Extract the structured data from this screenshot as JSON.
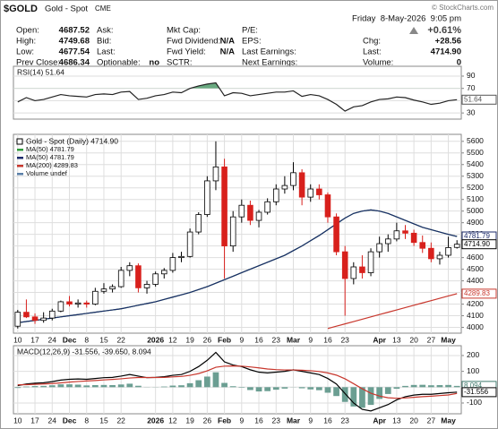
{
  "quote": {
    "symbol": "$GOLD",
    "name": "Gold - Spot",
    "exchange": "CME",
    "copyright": "© StockCharts.com",
    "date": "Friday  8-May-2026  9:05 pm",
    "columns": [
      [
        {
          "label": "Open:",
          "value": "4687.52"
        },
        {
          "label": "High:",
          "value": "4749.68"
        },
        {
          "label": "Low:",
          "value": "4677.54"
        },
        {
          "label": "Prev Close:",
          "value": "4686.34"
        }
      ],
      [
        {
          "label": "Ask:"
        },
        {
          "label": "Bid:"
        },
        {
          "label": "Last:"
        },
        {
          "label": "Optionable:",
          "value": "no"
        }
      ],
      [
        {
          "label": "Mkt Cap:"
        },
        {
          "label": "Fwd Dividend:",
          "value": "N/A"
        },
        {
          "label": "Fwd Yield:",
          "value": "N/A"
        },
        {
          "label": "SCTR:"
        }
      ],
      [
        {
          "label": "P/E:"
        },
        {
          "label": "EPS:"
        },
        {
          "label": "Last Earnings:"
        },
        {
          "label": "Next Earnings:"
        }
      ],
      [
        {
          "value": "+0.61%"
        },
        {
          "label": "Chg:",
          "value": "+28.56"
        },
        {
          "label": "Last:",
          "value": "4714.90"
        },
        {
          "label": "Volume:",
          "value": "0"
        }
      ]
    ]
  },
  "chart_data": [
    {
      "type": "line",
      "title": "RSI(14) 51.64",
      "ylim": [
        20,
        106
      ],
      "yticks": [
        90,
        70,
        50,
        30
      ],
      "grid": true,
      "fill_above": 70,
      "fill_color": "#4f9a6a",
      "series": [
        {
          "type": "line",
          "color": "#222222",
          "values": [
            48,
            55,
            50,
            52,
            56,
            60,
            58,
            57,
            56,
            60,
            61,
            60,
            64,
            65,
            52,
            54,
            58,
            60,
            64,
            63,
            70,
            74,
            77,
            79,
            58,
            63,
            62,
            58,
            60,
            62,
            64,
            64,
            66,
            57,
            60,
            58,
            52,
            44,
            33,
            40,
            42,
            48,
            52,
            53,
            56,
            55,
            51,
            48,
            44,
            46,
            50,
            51.64
          ]
        }
      ],
      "tags": [
        {
          "value": 51.64,
          "label": "51.64",
          "color": "#555555"
        }
      ]
    },
    {
      "type": "candlestick",
      "ylim": [
        3950,
        5660
      ],
      "grid": true,
      "yticks": [
        5600,
        5500,
        5400,
        5300,
        5200,
        5100,
        5000,
        4900,
        4800,
        4700,
        4600,
        4500,
        4400,
        4300,
        4200,
        4100,
        4000
      ],
      "categories": [
        "10",
        null,
        "17",
        null,
        "24",
        null,
        "Dec",
        null,
        "8",
        null,
        "15",
        null,
        "22",
        null,
        null,
        null,
        "2026",
        null,
        "12",
        null,
        "19",
        null,
        "26",
        null,
        "Feb",
        null,
        "9",
        null,
        "16",
        null,
        "23",
        null,
        "Mar",
        null,
        "9",
        null,
        "16",
        null,
        "23",
        null,
        null,
        null,
        "Apr",
        null,
        "13",
        null,
        "20",
        null,
        "27",
        null,
        "May",
        null
      ],
      "candles": {
        "name": "Gold - Spot (Daily) 4714.90",
        "up_color": "#000000",
        "down_color": "#d8201c",
        "open": [
          4010,
          4130,
          4090,
          4060,
          4080,
          4140,
          4220,
          4200,
          4210,
          4200,
          4310,
          4330,
          4350,
          4490,
          4530,
          4340,
          4370,
          4460,
          4490,
          4600,
          4610,
          4820,
          4970,
          5260,
          5380,
          4700,
          4950,
          5050,
          4920,
          4990,
          5080,
          5190,
          5220,
          5330,
          5120,
          5190,
          5140,
          4950,
          4650,
          4420,
          4520,
          4470,
          4650,
          4720,
          4760,
          4830,
          4810,
          4730,
          4680,
          4590,
          4620,
          4687.52
        ],
        "high": [
          4150,
          4240,
          4120,
          4130,
          4160,
          4230,
          4270,
          4240,
          4230,
          4340,
          4380,
          4370,
          4520,
          4560,
          4550,
          4400,
          4480,
          4510,
          4640,
          4650,
          4850,
          4990,
          5300,
          5600,
          5450,
          5000,
          5100,
          5090,
          5010,
          5110,
          5230,
          5300,
          5420,
          5360,
          5230,
          5230,
          5160,
          4980,
          4700,
          4560,
          4620,
          4680,
          4780,
          4800,
          4900,
          4880,
          4840,
          4790,
          4730,
          4650,
          4780,
          4749.68
        ],
        "low": [
          3990,
          4080,
          4030,
          4040,
          4060,
          4130,
          4180,
          4170,
          4170,
          4190,
          4290,
          4300,
          4340,
          4440,
          4300,
          4290,
          4350,
          4420,
          4470,
          4560,
          4600,
          4800,
          4950,
          5180,
          4420,
          4650,
          4900,
          4880,
          4860,
          4970,
          5050,
          5150,
          5180,
          5050,
          5080,
          5100,
          4900,
          4620,
          4100,
          4370,
          4420,
          4440,
          4600,
          4650,
          4740,
          4760,
          4700,
          4640,
          4560,
          4540,
          4600,
          4677.54
        ],
        "close": [
          4130,
          4090,
          4060,
          4080,
          4140,
          4220,
          4200,
          4210,
          4200,
          4310,
          4330,
          4350,
          4490,
          4530,
          4340,
          4370,
          4460,
          4490,
          4600,
          4610,
          4820,
          4970,
          5260,
          5380,
          4700,
          4950,
          5050,
          4920,
          4990,
          5080,
          5190,
          5220,
          5330,
          5120,
          5190,
          5140,
          4950,
          4650,
          4420,
          4520,
          4470,
          4650,
          4720,
          4760,
          4830,
          4810,
          4730,
          4680,
          4590,
          4620,
          4686.34,
          4714.9
        ]
      },
      "series": [
        {
          "name": "MA(50) 4781.79",
          "type": "line",
          "color": "#2e9a3a",
          "values": [
            4040,
            4050,
            4060,
            4070,
            4080,
            4090,
            4100,
            4110,
            4120,
            4130,
            4140,
            4150,
            4160,
            4175,
            4190,
            4205,
            4220,
            4240,
            4260,
            4280,
            4300,
            4325,
            4350,
            4380,
            4410,
            4440,
            4470,
            4500,
            4530,
            4560,
            4590,
            4620,
            4660,
            4700,
            4745,
            4790,
            4840,
            4890,
            4940,
            4980,
            5000,
            5010,
            5000,
            4980,
            4950,
            4920,
            4890,
            4860,
            4840,
            4820,
            4800,
            4781.79
          ]
        },
        {
          "name": "MA(50) 4781.79",
          "type": "line",
          "color": "#1b2a6b",
          "values": [
            4040,
            4050,
            4060,
            4070,
            4080,
            4090,
            4100,
            4110,
            4120,
            4130,
            4140,
            4150,
            4160,
            4175,
            4190,
            4205,
            4220,
            4240,
            4260,
            4280,
            4300,
            4325,
            4350,
            4380,
            4410,
            4440,
            4470,
            4500,
            4530,
            4560,
            4590,
            4620,
            4660,
            4700,
            4745,
            4790,
            4840,
            4890,
            4940,
            4980,
            5000,
            5010,
            5000,
            4980,
            4950,
            4920,
            4890,
            4860,
            4840,
            4820,
            4800,
            4781.79
          ]
        },
        {
          "name": "MA(200) 4289.83",
          "type": "line",
          "color": "#c8372d",
          "values": [
            null,
            null,
            null,
            null,
            null,
            null,
            null,
            null,
            null,
            null,
            null,
            null,
            null,
            null,
            null,
            null,
            null,
            null,
            null,
            null,
            null,
            null,
            null,
            null,
            null,
            null,
            null,
            null,
            null,
            null,
            null,
            null,
            null,
            null,
            null,
            null,
            3990,
            4010,
            4030,
            4050,
            4070,
            4090,
            4110,
            4130,
            4150,
            4170,
            4190,
            4210,
            4230,
            4250,
            4270,
            4289.83
          ]
        },
        {
          "name": "Volume undef",
          "type": "bar",
          "color": "#5a7fa8"
        }
      ],
      "tags": [
        {
          "value": 4781.79,
          "label": "4781.79",
          "color": "#1b2a6b"
        },
        {
          "value": 4714.9,
          "label": "4714.90",
          "color": "#000000"
        },
        {
          "value": 4289.83,
          "label": "4289.83",
          "color": "#c8372d"
        }
      ]
    },
    {
      "type": "line",
      "title": "MACD(12,26,9) -31.556, -39.650, 8.094",
      "ylim": [
        -168,
        262
      ],
      "yticks": [
        200,
        100,
        0,
        -100
      ],
      "grid": true,
      "categories": [
        "10",
        null,
        "17",
        null,
        "24",
        null,
        "Dec",
        null,
        "8",
        null,
        "15",
        null,
        "22",
        null,
        null,
        null,
        "2026",
        null,
        "12",
        null,
        "19",
        null,
        "26",
        null,
        "Feb",
        null,
        "9",
        null,
        "16",
        null,
        "23",
        null,
        "Mar",
        null,
        "9",
        null,
        "16",
        null,
        "23",
        null,
        null,
        null,
        "Apr",
        null,
        "13",
        null,
        "20",
        null,
        "27",
        null,
        "May",
        null
      ],
      "series": [
        {
          "type": "bar",
          "color": "#6b9e92",
          "values": [
            -5,
            4,
            7,
            8,
            12,
            18,
            18,
            16,
            11,
            13,
            14,
            13,
            17,
            22,
            9,
            -1,
            1,
            4,
            10,
            12,
            25,
            44,
            67,
            94,
            27,
            6,
            -3,
            -18,
            -27,
            -25,
            -16,
            -9,
            1,
            -7,
            -14,
            -19,
            -35,
            -56,
            -93,
            -122,
            -130,
            -112,
            -74,
            -43,
            -10,
            8,
            14,
            15,
            12,
            13,
            14,
            8.094
          ]
        },
        {
          "type": "line",
          "color": "#000000",
          "values": [
            10,
            20,
            25,
            28,
            35,
            45,
            50,
            52,
            50,
            55,
            60,
            62,
            70,
            80,
            70,
            60,
            62,
            66,
            75,
            80,
            100,
            130,
            170,
            220,
            160,
            140,
            130,
            110,
            95,
            90,
            95,
            100,
            110,
            100,
            90,
            80,
            55,
            20,
            -40,
            -100,
            -140,
            -150,
            -130,
            -110,
            -80,
            -60,
            -50,
            -45,
            -45,
            -40,
            -35,
            -31.556
          ]
        },
        {
          "type": "line",
          "color": "#c8372d",
          "values": [
            15,
            16,
            18,
            20,
            23,
            27,
            32,
            36,
            39,
            42,
            46,
            49,
            53,
            58,
            61,
            61,
            61,
            62,
            65,
            68,
            75,
            86,
            103,
            126,
            133,
            134,
            133,
            128,
            122,
            115,
            111,
            109,
            109,
            107,
            104,
            99,
            90,
            76,
            53,
            22,
            -10,
            -38,
            -56,
            -67,
            -70,
            -68,
            -64,
            -60,
            -57,
            -53,
            -49,
            -39.65
          ]
        }
      ],
      "tags": [
        {
          "value": 8.094,
          "label": "8.094",
          "color": "#3f7a6c"
        },
        {
          "value": -31.556,
          "label": "-31.556",
          "color": "#000000"
        }
      ]
    }
  ]
}
